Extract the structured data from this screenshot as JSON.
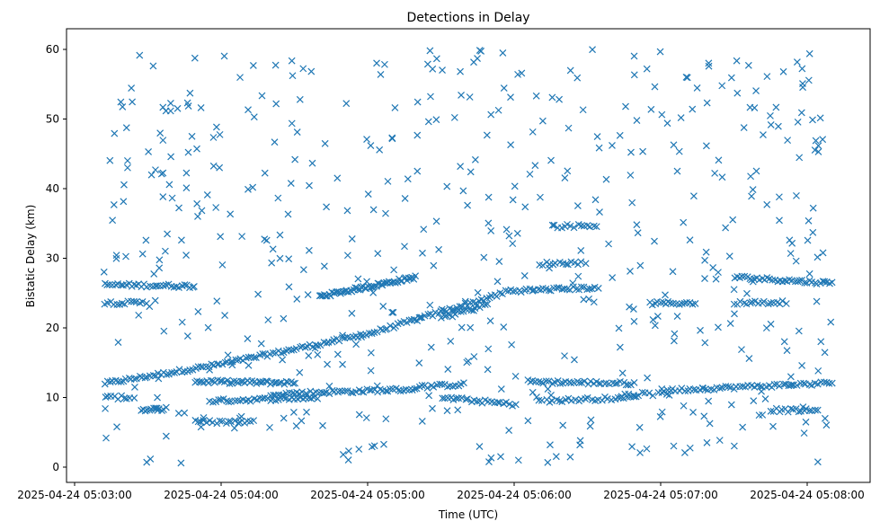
{
  "chart_data": {
    "type": "scatter",
    "title": "Detections in Delay",
    "xlabel": "Time (UTC)",
    "ylabel": "Bistatic Delay (km)",
    "x_unit": "seconds after 2025-04-24 05:03:00",
    "xlim": [
      -3,
      327
    ],
    "ylim": [
      -2.5,
      63
    ],
    "xticks": [
      0,
      60,
      120,
      180,
      240,
      300
    ],
    "xtick_labels": [
      "2025-04-24 05:03:00",
      "2025-04-24 05:04:00",
      "2025-04-24 05:05:00",
      "2025-04-24 05:06:00",
      "2025-04-24 05:07:00",
      "2025-04-24 05:08:00"
    ],
    "yticks": [
      0,
      10,
      20,
      30,
      40,
      50,
      60
    ],
    "ytick_labels": [
      "0",
      "10",
      "20",
      "30",
      "40",
      "50",
      "60"
    ],
    "marker": "x",
    "color": "#1f77b4",
    "grid": false,
    "tracks": [
      {
        "t": [
          12,
          60,
          120,
          176
        ],
        "v": [
          12.0,
          14.8,
          19.1,
          25.0
        ],
        "n": 150
      },
      {
        "t": [
          100,
          140
        ],
        "v": [
          24.5,
          27.3
        ],
        "n": 60
      },
      {
        "t": [
          12,
          50
        ],
        "v": [
          26.2,
          26.0
        ],
        "n": 35
      },
      {
        "t": [
          12,
          30
        ],
        "v": [
          23.6,
          23.6
        ],
        "n": 15
      },
      {
        "t": [
          27,
          37
        ],
        "v": [
          8.3,
          8.3
        ],
        "n": 12
      },
      {
        "t": [
          12,
          25
        ],
        "v": [
          10.0,
          10.0
        ],
        "n": 10
      },
      {
        "t": [
          49,
          91
        ],
        "v": [
          12.3,
          12.1
        ],
        "n": 45
      },
      {
        "t": [
          55,
          100
        ],
        "v": [
          9.5,
          10.0
        ],
        "n": 40
      },
      {
        "t": [
          49,
          74
        ],
        "v": [
          6.5,
          6.5
        ],
        "n": 20
      },
      {
        "t": [
          80,
          140
        ],
        "v": [
          10.5,
          11.2
        ],
        "n": 55
      },
      {
        "t": [
          140,
          160
        ],
        "v": [
          11.5,
          11.9
        ],
        "n": 18
      },
      {
        "t": [
          150,
          180
        ],
        "v": [
          10.0,
          9.0
        ],
        "n": 25
      },
      {
        "t": [
          150,
          170
        ],
        "v": [
          21.5,
          23.5
        ],
        "n": 18
      },
      {
        "t": [
          176,
          215
        ],
        "v": [
          25.3,
          25.8
        ],
        "n": 35
      },
      {
        "t": [
          185,
          230
        ],
        "v": [
          12.3,
          12.0
        ],
        "n": 40
      },
      {
        "t": [
          190,
          230
        ],
        "v": [
          9.5,
          10.0
        ],
        "n": 30
      },
      {
        "t": [
          190,
          210
        ],
        "v": [
          29.2,
          29.4
        ],
        "n": 15
      },
      {
        "t": [
          195,
          215
        ],
        "v": [
          34.6,
          34.7
        ],
        "n": 15
      },
      {
        "t": [
          225,
          245
        ],
        "v": [
          10.5,
          10.5
        ],
        "n": 12
      },
      {
        "t": [
          235,
          255
        ],
        "v": [
          23.5,
          23.6
        ],
        "n": 18
      },
      {
        "t": [
          240,
          311
        ],
        "v": [
          11.0,
          12.1
        ],
        "n": 60
      },
      {
        "t": [
          270,
          311
        ],
        "v": [
          27.3,
          26.4
        ],
        "n": 40
      },
      {
        "t": [
          270,
          292
        ],
        "v": [
          23.6,
          23.7
        ],
        "n": 18
      },
      {
        "t": [
          285,
          305
        ],
        "v": [
          8.2,
          8.1
        ],
        "n": 18
      }
    ],
    "clutter": {
      "n": 520,
      "t_range": [
        12,
        311
      ],
      "v_range": [
        0.5,
        60
      ]
    }
  }
}
